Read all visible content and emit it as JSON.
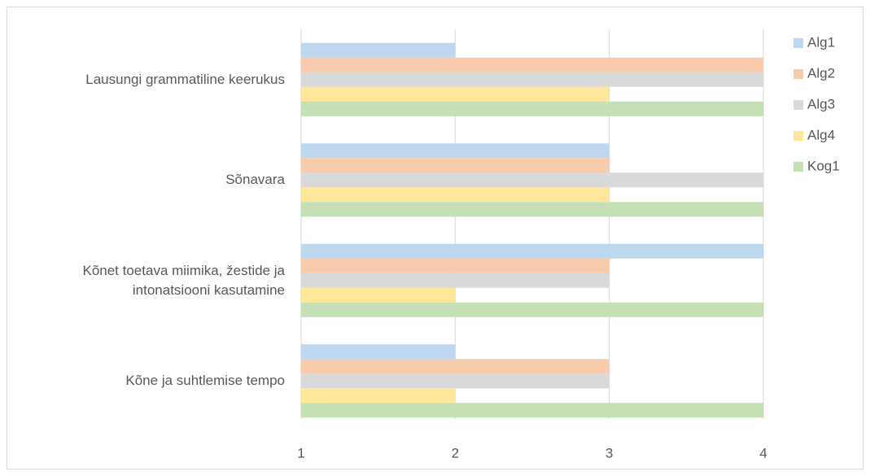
{
  "chart_data": {
    "type": "barh",
    "categories": [
      "Lausungi grammatiline keerukus",
      "Sõnavara",
      "Kõnet toetava miimika, žestide ja intonatsiooni kasutamine",
      "Kõne ja suhtlemise tempo"
    ],
    "series": [
      {
        "name": "Alg1",
        "color": "#bdd7ee",
        "values": [
          2,
          3,
          4,
          2
        ]
      },
      {
        "name": "Alg2",
        "color": "#f8cbad",
        "values": [
          4,
          3,
          3,
          3
        ]
      },
      {
        "name": "Alg3",
        "color": "#d9d9d9",
        "values": [
          4,
          4,
          3,
          3
        ]
      },
      {
        "name": "Alg4",
        "color": "#ffe699",
        "values": [
          3,
          3,
          2,
          2
        ]
      },
      {
        "name": "Kog1",
        "color": "#c5e0b4",
        "values": [
          4,
          4,
          4,
          4
        ]
      }
    ],
    "xlim": [
      1,
      4
    ],
    "xticks": [
      1,
      2,
      3,
      4
    ],
    "grid": true,
    "legend": "right"
  }
}
